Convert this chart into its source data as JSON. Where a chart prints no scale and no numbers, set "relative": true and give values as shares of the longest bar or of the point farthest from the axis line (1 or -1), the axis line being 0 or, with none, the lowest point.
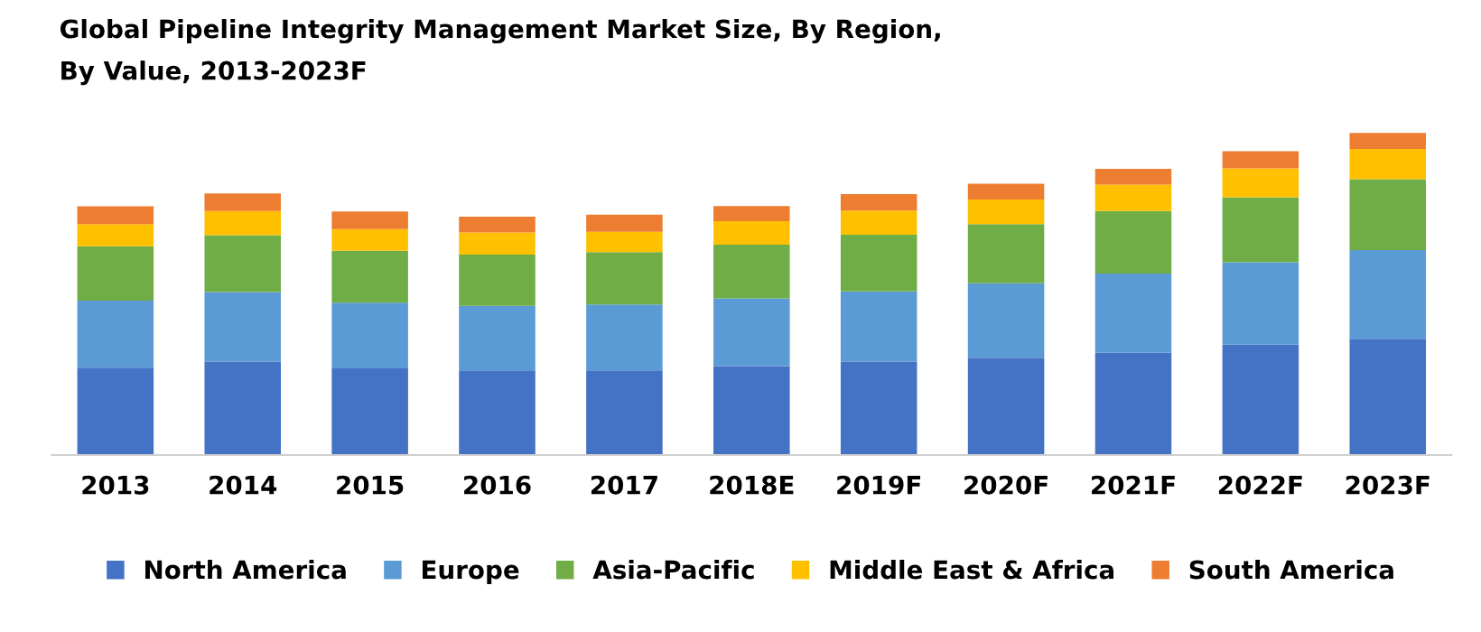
{
  "chart_data": {
    "type": "bar",
    "stacked": true,
    "relative": true,
    "title": "Global Pipeline Integrity Management Market Size, By Region,\nBy Value, 2013-2023F",
    "categories": [
      "2013",
      "2014",
      "2015",
      "2016",
      "2017",
      "2018E",
      "2019F",
      "2020F",
      "2021F",
      "2022F",
      "2023F"
    ],
    "series": [
      {
        "name": "North America",
        "color": "#4472c4",
        "values": [
          0.271,
          0.29,
          0.269,
          0.263,
          0.263,
          0.276,
          0.29,
          0.302,
          0.318,
          0.343,
          0.361
        ]
      },
      {
        "name": "Europe",
        "color": "#5b9bd5",
        "values": [
          0.208,
          0.216,
          0.204,
          0.2,
          0.204,
          0.21,
          0.218,
          0.231,
          0.245,
          0.255,
          0.275
        ]
      },
      {
        "name": "Asia-Pacific",
        "color": "#70ad47",
        "values": [
          0.169,
          0.176,
          0.161,
          0.159,
          0.163,
          0.167,
          0.176,
          0.184,
          0.194,
          0.202,
          0.22
        ]
      },
      {
        "name": "Middle East & Africa",
        "color": "#ffc000",
        "values": [
          0.069,
          0.075,
          0.067,
          0.069,
          0.063,
          0.073,
          0.075,
          0.076,
          0.082,
          0.09,
          0.094
        ]
      },
      {
        "name": "South America",
        "color": "#ed7d31",
        "values": [
          0.055,
          0.055,
          0.055,
          0.049,
          0.053,
          0.047,
          0.051,
          0.049,
          0.049,
          0.053,
          0.05
        ]
      }
    ],
    "legend": "bottom",
    "grid": false
  }
}
